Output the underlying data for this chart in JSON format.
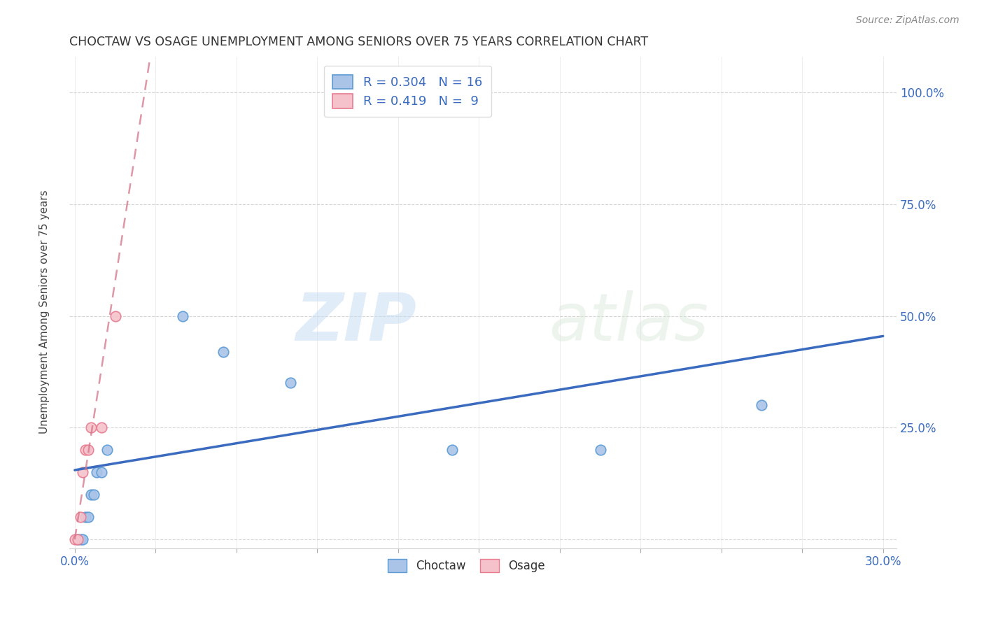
{
  "title": "CHOCTAW VS OSAGE UNEMPLOYMENT AMONG SENIORS OVER 75 YEARS CORRELATION CHART",
  "source": "Source: ZipAtlas.com",
  "ylabel": "Unemployment Among Seniors over 75 years",
  "xlim": [
    -0.002,
    0.305
  ],
  "ylim": [
    -0.02,
    1.08
  ],
  "ytick_values": [
    0.0,
    0.25,
    0.5,
    0.75,
    1.0
  ],
  "xtick_values": [
    0.0,
    0.03,
    0.06,
    0.09,
    0.12,
    0.15,
    0.18,
    0.21,
    0.24,
    0.27,
    0.3
  ],
  "choctaw_x": [
    0.001,
    0.002,
    0.003,
    0.004,
    0.005,
    0.006,
    0.007,
    0.008,
    0.01,
    0.012,
    0.04,
    0.055,
    0.08,
    0.14,
    0.195,
    0.255
  ],
  "choctaw_y": [
    0.0,
    0.0,
    0.0,
    0.05,
    0.05,
    0.1,
    0.1,
    0.15,
    0.15,
    0.2,
    0.5,
    0.42,
    0.35,
    0.2,
    0.2,
    0.3
  ],
  "osage_x": [
    0.0,
    0.001,
    0.002,
    0.003,
    0.004,
    0.005,
    0.006,
    0.01,
    0.015
  ],
  "osage_y": [
    0.0,
    0.0,
    0.05,
    0.15,
    0.2,
    0.2,
    0.25,
    0.25,
    0.5
  ],
  "choctaw_color": "#aac4e8",
  "choctaw_edge_color": "#5b9bd5",
  "osage_color": "#f5c2cb",
  "osage_edge_color": "#e87b90",
  "choctaw_R": 0.304,
  "choctaw_N": 16,
  "osage_R": 0.419,
  "osage_N": 9,
  "trend_blue_x0": 0.0,
  "trend_blue_y0": 0.155,
  "trend_blue_x1": 0.3,
  "trend_blue_y1": 0.455,
  "trend_pink_x0": 0.0,
  "trend_pink_y0": 0.0,
  "trend_pink_x1": 0.028,
  "trend_pink_y1": 1.08,
  "trend_blue_color": "#3a6bbf",
  "trend_pink_color": "#d4748a",
  "watermark_zip": "ZIP",
  "watermark_atlas": "atlas",
  "background_color": "#ffffff",
  "grid_color": "#cccccc",
  "title_color": "#333333",
  "axis_label_color": "#444444",
  "tick_color_x": "#3a6bbf",
  "tick_color_y": "#3a6bbf",
  "marker_size": 110,
  "legend_R_color": "#3a6bbf",
  "legend_N_color": "#3a6bbf"
}
